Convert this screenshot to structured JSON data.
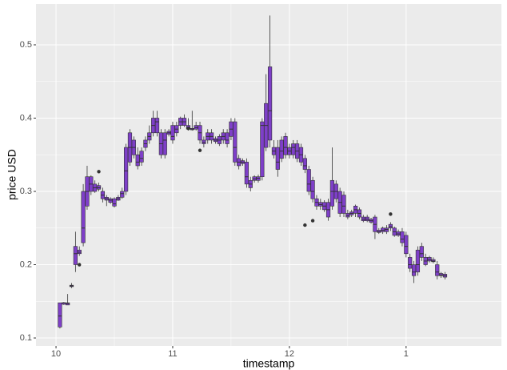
{
  "chart_data": {
    "type": "boxplot",
    "xlabel": "timestamp",
    "ylabel": "price USD",
    "fill": "#7e3fc8",
    "outline": "#333333",
    "background": "#ebebeb",
    "grid": true,
    "xlim": [
      -10.3,
      229
    ],
    "ylim": [
      0.0891,
      0.5557
    ],
    "xticks": [
      {
        "value": 0,
        "label": "10"
      },
      {
        "value": 60,
        "label": "11"
      },
      {
        "value": 120,
        "label": "12"
      },
      {
        "value": 180,
        "label": "1"
      }
    ],
    "yticks": [
      0.1,
      0.2,
      0.3,
      0.4,
      0.5
    ],
    "x": [
      2,
      4,
      6,
      8,
      10,
      12,
      14,
      16,
      18,
      20,
      22,
      24,
      26,
      28,
      30,
      32,
      34,
      36,
      38,
      40,
      42,
      44,
      46,
      48,
      50,
      52,
      54,
      56,
      58,
      60,
      62,
      64,
      66,
      68,
      70,
      72,
      74,
      76,
      78,
      80,
      82,
      84,
      86,
      88,
      90,
      92,
      94,
      96,
      98,
      100,
      102,
      104,
      106,
      108,
      110,
      112,
      114,
      116,
      118,
      120,
      122,
      124,
      126,
      128,
      130,
      132,
      134,
      136,
      138,
      140,
      142,
      144,
      146,
      148,
      150,
      152,
      154,
      156,
      158,
      160,
      162,
      164,
      166,
      168,
      170,
      172,
      174,
      176,
      178,
      180,
      182,
      184,
      186,
      188,
      190,
      192,
      194,
      196,
      198,
      200
    ],
    "boxes": [
      [
        0.113,
        0.115,
        0.13,
        0.148,
        0.148
      ],
      [
        0.145,
        0.146,
        0.148,
        0.148,
        0.149
      ],
      [
        0.145,
        0.145,
        0.147,
        0.148,
        0.16
      ],
      [
        0.168,
        0.17,
        0.171,
        0.172,
        0.175
      ],
      [
        0.19,
        0.2,
        0.215,
        0.225,
        0.245
      ],
      [
        0.212,
        0.215,
        0.217,
        0.22,
        0.225
      ],
      [
        0.225,
        0.23,
        0.25,
        0.3,
        0.31
      ],
      [
        0.275,
        0.28,
        0.3,
        0.32,
        0.335
      ],
      [
        0.295,
        0.3,
        0.31,
        0.32,
        0.322
      ],
      [
        0.298,
        0.3,
        0.305,
        0.31,
        0.315
      ],
      [
        0.3,
        0.303,
        0.305,
        0.308,
        0.312
      ],
      [
        0.285,
        0.29,
        0.295,
        0.3,
        0.305
      ],
      [
        0.28,
        0.288,
        0.29,
        0.292,
        0.295
      ],
      [
        0.283,
        0.285,
        0.288,
        0.29,
        0.292
      ],
      [
        0.278,
        0.28,
        0.283,
        0.29,
        0.292
      ],
      [
        0.287,
        0.288,
        0.29,
        0.292,
        0.295
      ],
      [
        0.29,
        0.292,
        0.297,
        0.3,
        0.305
      ],
      [
        0.295,
        0.3,
        0.328,
        0.36,
        0.365
      ],
      [
        0.335,
        0.34,
        0.36,
        0.38,
        0.385
      ],
      [
        0.345,
        0.35,
        0.36,
        0.37,
        0.375
      ],
      [
        0.33,
        0.335,
        0.34,
        0.35,
        0.36
      ],
      [
        0.335,
        0.34,
        0.345,
        0.355,
        0.36
      ],
      [
        0.355,
        0.36,
        0.365,
        0.37,
        0.375
      ],
      [
        0.365,
        0.37,
        0.375,
        0.38,
        0.39
      ],
      [
        0.375,
        0.38,
        0.39,
        0.4,
        0.41
      ],
      [
        0.375,
        0.38,
        0.395,
        0.4,
        0.41
      ],
      [
        0.345,
        0.35,
        0.365,
        0.38,
        0.385
      ],
      [
        0.345,
        0.35,
        0.37,
        0.38,
        0.385
      ],
      [
        0.375,
        0.378,
        0.38,
        0.382,
        0.385
      ],
      [
        0.365,
        0.37,
        0.375,
        0.39,
        0.395
      ],
      [
        0.375,
        0.38,
        0.385,
        0.39,
        0.395
      ],
      [
        0.385,
        0.39,
        0.395,
        0.4,
        0.402
      ],
      [
        0.388,
        0.39,
        0.395,
        0.4,
        0.405
      ],
      [
        0.383,
        0.385,
        0.387,
        0.39,
        0.4
      ],
      [
        0.383,
        0.384,
        0.385,
        0.386,
        0.41
      ],
      [
        0.383,
        0.385,
        0.387,
        0.39,
        0.395
      ],
      [
        0.365,
        0.37,
        0.38,
        0.39,
        0.395
      ],
      [
        0.36,
        0.365,
        0.367,
        0.37,
        0.375
      ],
      [
        0.365,
        0.37,
        0.375,
        0.38,
        0.385
      ],
      [
        0.365,
        0.37,
        0.375,
        0.38,
        0.385
      ],
      [
        0.365,
        0.368,
        0.37,
        0.372,
        0.375
      ],
      [
        0.362,
        0.365,
        0.37,
        0.375,
        0.378
      ],
      [
        0.365,
        0.37,
        0.375,
        0.38,
        0.385
      ],
      [
        0.36,
        0.365,
        0.37,
        0.38,
        0.385
      ],
      [
        0.37,
        0.375,
        0.385,
        0.395,
        0.4
      ],
      [
        0.335,
        0.34,
        0.36,
        0.395,
        0.4
      ],
      [
        0.33,
        0.335,
        0.34,
        0.345,
        0.35
      ],
      [
        0.335,
        0.338,
        0.34,
        0.342,
        0.345
      ],
      [
        0.305,
        0.31,
        0.32,
        0.34,
        0.345
      ],
      [
        0.3,
        0.305,
        0.31,
        0.315,
        0.32
      ],
      [
        0.312,
        0.315,
        0.317,
        0.32,
        0.322
      ],
      [
        0.312,
        0.315,
        0.318,
        0.32,
        0.323
      ],
      [
        0.315,
        0.32,
        0.39,
        0.395,
        0.4
      ],
      [
        0.355,
        0.36,
        0.39,
        0.42,
        0.46
      ],
      [
        0.36,
        0.37,
        0.41,
        0.47,
        0.54
      ],
      [
        0.345,
        0.35,
        0.355,
        0.36,
        0.37
      ],
      [
        0.32,
        0.33,
        0.34,
        0.36,
        0.37
      ],
      [
        0.34,
        0.345,
        0.355,
        0.37,
        0.375
      ],
      [
        0.345,
        0.35,
        0.36,
        0.375,
        0.38
      ],
      [
        0.345,
        0.35,
        0.355,
        0.36,
        0.365
      ],
      [
        0.345,
        0.35,
        0.36,
        0.365,
        0.37
      ],
      [
        0.34,
        0.345,
        0.355,
        0.365,
        0.37
      ],
      [
        0.335,
        0.34,
        0.35,
        0.36,
        0.365
      ],
      [
        0.325,
        0.33,
        0.335,
        0.345,
        0.35
      ],
      [
        0.295,
        0.3,
        0.31,
        0.33,
        0.335
      ],
      [
        0.285,
        0.29,
        0.3,
        0.315,
        0.32
      ],
      [
        0.275,
        0.28,
        0.285,
        0.29,
        0.295
      ],
      [
        0.275,
        0.28,
        0.282,
        0.285,
        0.29
      ],
      [
        0.272,
        0.275,
        0.28,
        0.285,
        0.288
      ],
      [
        0.26,
        0.265,
        0.275,
        0.285,
        0.29
      ],
      [
        0.275,
        0.28,
        0.3,
        0.315,
        0.36
      ],
      [
        0.285,
        0.29,
        0.3,
        0.31,
        0.315
      ],
      [
        0.265,
        0.27,
        0.285,
        0.3,
        0.305
      ],
      [
        0.265,
        0.27,
        0.28,
        0.295,
        0.3
      ],
      [
        0.262,
        0.265,
        0.267,
        0.27,
        0.275
      ],
      [
        0.265,
        0.268,
        0.27,
        0.272,
        0.275
      ],
      [
        0.265,
        0.27,
        0.275,
        0.28,
        0.282
      ],
      [
        0.262,
        0.265,
        0.27,
        0.275,
        0.278
      ],
      [
        0.258,
        0.26,
        0.262,
        0.265,
        0.268
      ],
      [
        0.258,
        0.26,
        0.262,
        0.265,
        0.268
      ],
      [
        0.256,
        0.258,
        0.26,
        0.262,
        0.264
      ],
      [
        0.235,
        0.245,
        0.255,
        0.265,
        0.268
      ],
      [
        0.242,
        0.244,
        0.245,
        0.247,
        0.25
      ],
      [
        0.242,
        0.245,
        0.247,
        0.25,
        0.252
      ],
      [
        0.242,
        0.245,
        0.248,
        0.25,
        0.254
      ],
      [
        0.246,
        0.25,
        0.252,
        0.255,
        0.258
      ],
      [
        0.238,
        0.24,
        0.245,
        0.25,
        0.252
      ],
      [
        0.238,
        0.24,
        0.242,
        0.245,
        0.248
      ],
      [
        0.225,
        0.23,
        0.235,
        0.245,
        0.25
      ],
      [
        0.21,
        0.215,
        0.225,
        0.24,
        0.245
      ],
      [
        0.19,
        0.195,
        0.2,
        0.21,
        0.215
      ],
      [
        0.175,
        0.185,
        0.19,
        0.2,
        0.205
      ],
      [
        0.185,
        0.19,
        0.2,
        0.22,
        0.225
      ],
      [
        0.205,
        0.21,
        0.215,
        0.225,
        0.23
      ],
      [
        0.198,
        0.2,
        0.205,
        0.21,
        0.215
      ],
      [
        0.203,
        0.205,
        0.207,
        0.21,
        0.212
      ],
      [
        0.202,
        0.204,
        0.205,
        0.207,
        0.21
      ],
      [
        0.18,
        0.185,
        0.19,
        0.2,
        0.205
      ],
      [
        0.182,
        0.185,
        0.186,
        0.188,
        0.19
      ],
      [
        0.18,
        0.183,
        0.185,
        0.187,
        0.19
      ]
    ],
    "outliers": [
      {
        "x": 12,
        "y": 0.2
      },
      {
        "x": 22,
        "y": 0.327
      },
      {
        "x": 68,
        "y": 0.386
      },
      {
        "x": 74,
        "y": 0.356
      },
      {
        "x": 128,
        "y": 0.254
      },
      {
        "x": 132,
        "y": 0.26
      },
      {
        "x": 172,
        "y": 0.269
      }
    ]
  }
}
